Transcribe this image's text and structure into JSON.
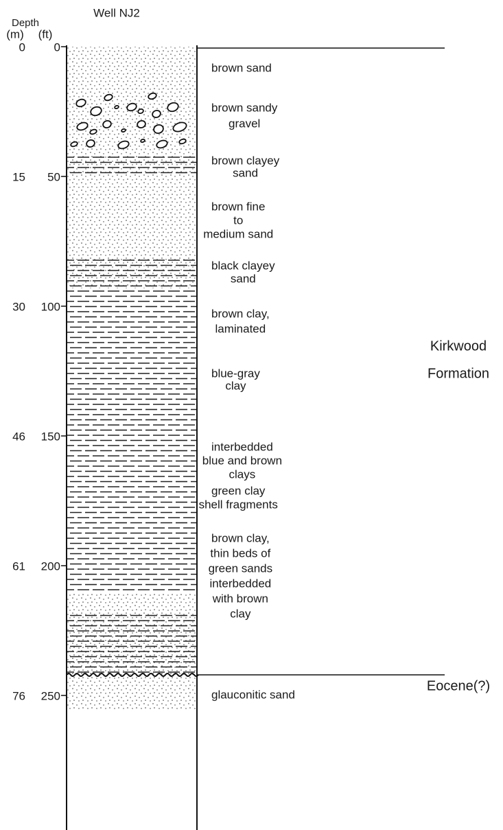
{
  "header": {
    "depth": "Depth",
    "unit_m": "(m)",
    "unit_ft": "(ft)",
    "well": "Well NJ2"
  },
  "depth_scale": [
    {
      "m": 0,
      "ft": 0
    },
    {
      "m": 15,
      "ft": 50
    },
    {
      "m": 30,
      "ft": 100
    },
    {
      "m": 46,
      "ft": 150
    },
    {
      "m": 61,
      "ft": 200
    },
    {
      "m": 76,
      "ft": 250
    }
  ],
  "layers": [
    {
      "description": [
        "brown sand"
      ]
    },
    {
      "description": [
        "brown sandy",
        "gravel"
      ]
    },
    {
      "description": [
        "brown clayey",
        "sand"
      ]
    },
    {
      "description": [
        "brown fine",
        "to",
        "medium sand"
      ]
    },
    {
      "description": [
        "black clayey",
        "sand"
      ]
    },
    {
      "description": [
        "brown clay,",
        "laminated"
      ]
    },
    {
      "description": [
        "blue-gray",
        "clay"
      ]
    },
    {
      "description": [
        "interbedded",
        "blue and brown",
        "clays"
      ]
    },
    {
      "description": [
        "green clay",
        "shell fragments"
      ]
    },
    {
      "description": [
        "brown clay,",
        "thin beds of",
        "green sands",
        "interbedded",
        "with brown",
        "clay"
      ]
    },
    {
      "description": [
        "glauconitic sand"
      ]
    }
  ],
  "formations": [
    {
      "name": [
        "Kirkwood",
        "Formation"
      ]
    },
    {
      "name": [
        "Eocene(?)"
      ]
    }
  ]
}
